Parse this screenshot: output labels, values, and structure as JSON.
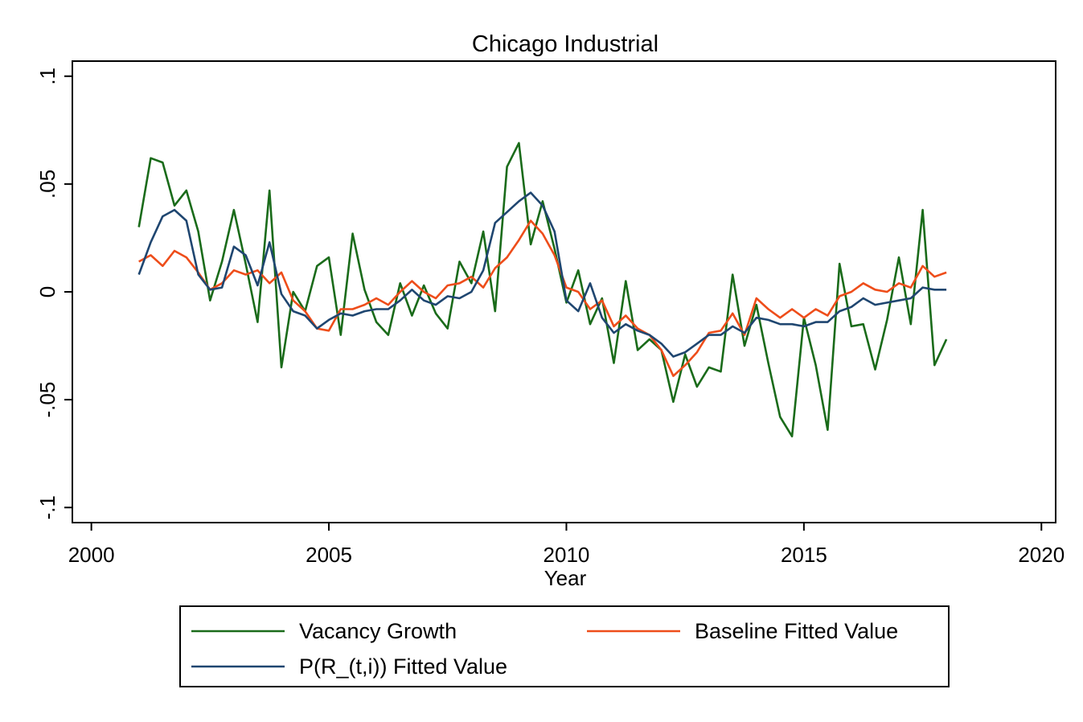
{
  "chart_data": {
    "type": "line",
    "title": "Chicago Industrial",
    "xlabel": "Year",
    "ylabel": "",
    "xlim": [
      1999.6,
      2020.3
    ],
    "ylim": [
      -0.107,
      0.107
    ],
    "x_ticks": [
      2000,
      2005,
      2010,
      2015,
      2020
    ],
    "x_tick_labels": [
      "2000",
      "2005",
      "2010",
      "2015",
      "2020"
    ],
    "y_ticks": [
      0.1,
      0.05,
      0,
      -0.05,
      -0.1
    ],
    "y_tick_labels": [
      ".1",
      ".05",
      "0",
      "-.05",
      "-.1"
    ],
    "grid": false,
    "legend_position": "bottom",
    "x": [
      2001.0,
      2001.25,
      2001.5,
      2001.75,
      2002.0,
      2002.25,
      2002.5,
      2002.75,
      2003.0,
      2003.25,
      2003.5,
      2003.75,
      2004.0,
      2004.25,
      2004.5,
      2004.75,
      2005.0,
      2005.25,
      2005.5,
      2005.75,
      2006.0,
      2006.25,
      2006.5,
      2006.75,
      2007.0,
      2007.25,
      2007.5,
      2007.75,
      2008.0,
      2008.25,
      2008.5,
      2008.75,
      2009.0,
      2009.25,
      2009.5,
      2009.75,
      2010.0,
      2010.25,
      2010.5,
      2010.75,
      2011.0,
      2011.25,
      2011.5,
      2011.75,
      2012.0,
      2012.25,
      2012.5,
      2012.75,
      2013.0,
      2013.25,
      2013.5,
      2013.75,
      2014.0,
      2014.25,
      2014.5,
      2014.75,
      2015.0,
      2015.25,
      2015.5,
      2015.75,
      2016.0,
      2016.25,
      2016.5,
      2016.75,
      2017.0,
      2017.25,
      2017.5,
      2017.75,
      2018.0
    ],
    "series": [
      {
        "name": "Vacancy Growth",
        "color": "#1a6b1a",
        "values": [
          0.03,
          0.062,
          0.06,
          0.04,
          0.047,
          0.028,
          -0.004,
          0.014,
          0.038,
          0.013,
          -0.014,
          0.047,
          -0.035,
          0.0,
          -0.009,
          0.012,
          0.016,
          -0.02,
          0.027,
          0.001,
          -0.014,
          -0.02,
          0.004,
          -0.011,
          0.003,
          -0.01,
          -0.017,
          0.014,
          0.004,
          0.028,
          -0.009,
          0.058,
          0.069,
          0.022,
          0.042,
          0.02,
          -0.005,
          0.01,
          -0.015,
          -0.003,
          -0.033,
          0.005,
          -0.027,
          -0.022,
          -0.027,
          -0.051,
          -0.029,
          -0.044,
          -0.035,
          -0.037,
          0.008,
          -0.025,
          -0.006,
          -0.033,
          -0.058,
          -0.067,
          -0.012,
          -0.034,
          -0.064,
          0.013,
          -0.016,
          -0.015,
          -0.036,
          -0.013,
          0.016,
          -0.015,
          0.038,
          -0.034,
          -0.022
        ]
      },
      {
        "name": "Baseline Fitted Value",
        "color": "#ee4d1a",
        "values": [
          0.014,
          0.017,
          0.012,
          0.019,
          0.016,
          0.009,
          0.001,
          0.004,
          0.01,
          0.008,
          0.01,
          0.004,
          0.009,
          -0.004,
          -0.009,
          -0.017,
          -0.018,
          -0.008,
          -0.008,
          -0.006,
          -0.003,
          -0.006,
          -0.0,
          0.005,
          0.0,
          -0.003,
          0.003,
          0.004,
          0.007,
          0.002,
          0.011,
          0.016,
          0.024,
          0.033,
          0.027,
          0.017,
          0.002,
          -0.0,
          -0.008,
          -0.004,
          -0.016,
          -0.011,
          -0.017,
          -0.02,
          -0.027,
          -0.039,
          -0.034,
          -0.028,
          -0.019,
          -0.018,
          -0.01,
          -0.02,
          -0.003,
          -0.008,
          -0.012,
          -0.008,
          -0.012,
          -0.008,
          -0.011,
          -0.002,
          0.0,
          0.004,
          0.001,
          0.0,
          0.004,
          0.002,
          0.012,
          0.007,
          0.009
        ]
      },
      {
        "name": "P(R_(t,i)) Fitted Value",
        "color": "#1f4670",
        "values": [
          0.008,
          0.023,
          0.035,
          0.038,
          0.033,
          0.008,
          0.001,
          0.002,
          0.021,
          0.017,
          0.003,
          0.023,
          -0.001,
          -0.009,
          -0.011,
          -0.017,
          -0.013,
          -0.01,
          -0.011,
          -0.009,
          -0.008,
          -0.008,
          -0.004,
          0.001,
          -0.004,
          -0.006,
          -0.002,
          -0.003,
          -0.0,
          0.01,
          0.032,
          0.037,
          0.042,
          0.046,
          0.04,
          0.028,
          -0.004,
          -0.009,
          0.004,
          -0.012,
          -0.019,
          -0.015,
          -0.018,
          -0.02,
          -0.024,
          -0.03,
          -0.028,
          -0.024,
          -0.02,
          -0.02,
          -0.016,
          -0.019,
          -0.012,
          -0.013,
          -0.015,
          -0.015,
          -0.016,
          -0.014,
          -0.014,
          -0.009,
          -0.007,
          -0.003,
          -0.006,
          -0.005,
          -0.004,
          -0.003,
          0.002,
          0.001,
          0.001
        ]
      }
    ]
  }
}
